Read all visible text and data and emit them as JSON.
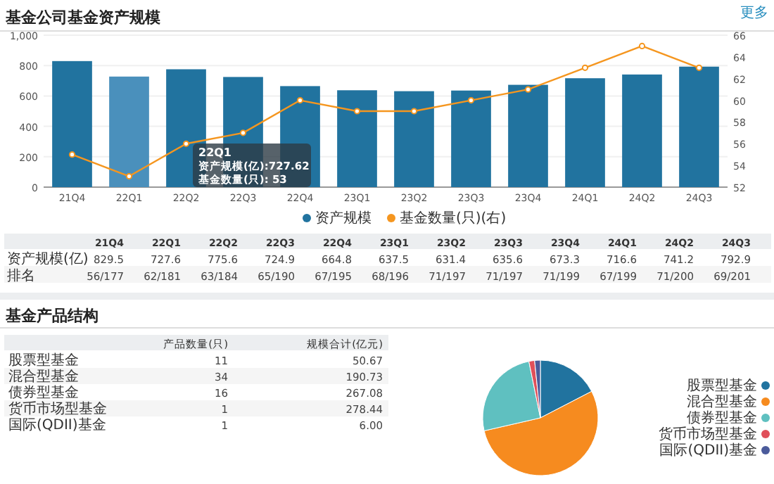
{
  "chart_data": [
    {
      "type": "bar",
      "title": "基金公司基金资产规模",
      "categories": [
        "21Q4",
        "22Q1",
        "22Q2",
        "22Q3",
        "22Q4",
        "23Q1",
        "23Q2",
        "23Q3",
        "23Q4",
        "24Q1",
        "24Q2",
        "24Q3"
      ],
      "series": [
        {
          "name": "资产规模",
          "color": "#21739f",
          "colors": [
            "#21739f",
            "#4a90bc",
            "#21739f",
            "#21739f",
            "#21739f",
            "#21739f",
            "#21739f",
            "#21739f",
            "#21739f",
            "#21739f",
            "#21739f",
            "#21739f"
          ],
          "values": [
            829.5,
            727.6,
            775.6,
            724.9,
            664.8,
            637.5,
            631.4,
            635.6,
            673.3,
            716.6,
            741.2,
            792.9
          ]
        },
        {
          "name": "基金数量(只)(右)",
          "type": "line",
          "axis": "y2",
          "color": "#f5961f",
          "marker": "circle",
          "values": [
            55,
            53,
            56,
            57,
            60,
            59,
            59,
            60,
            61,
            63,
            65,
            63
          ]
        }
      ],
      "ylim": [
        0,
        1000
      ],
      "yticks": [
        0,
        200,
        400,
        600,
        800,
        {
          "value": 1000,
          "label": "1,000"
        }
      ],
      "y2lim": [
        52,
        66
      ],
      "y2ticks": [
        52,
        54,
        56,
        58,
        60,
        62,
        64,
        66
      ],
      "grid": "y",
      "legend": "bottom",
      "annotations": [
        "更多",
        "22Q1\n资产规模(亿):727.62\n基金数量(只): 53"
      ]
    },
    {
      "type": "other",
      "categories": [
        "21Q4",
        "22Q1",
        "22Q2",
        "22Q3",
        "22Q4",
        "23Q1",
        "23Q2",
        "23Q3",
        "23Q4",
        "24Q1",
        "24Q2",
        "24Q3"
      ],
      "annotations": [
        "资产规模(亿)",
        "829.5",
        "727.6",
        "775.6",
        "724.9",
        "664.8",
        "637.5",
        "631.4",
        "635.6",
        "673.3",
        "716.6",
        "741.2",
        "792.9",
        "排名",
        "56/177",
        "62/181",
        "63/184",
        "65/190",
        "67/195",
        "68/196",
        "71/197",
        "71/197",
        "71/199",
        "67/199",
        "71/200",
        "69/201"
      ]
    },
    {
      "type": "other",
      "title": "基金产品结构",
      "categories": [
        "股票型基金",
        "混合型基金",
        "债券型基金",
        "货币市场型基金",
        "国际(QDII)基金"
      ],
      "annotations": [
        "产品数量(只)",
        "规模合计(亿元)",
        "11",
        "50.67",
        "34",
        "190.73",
        "16",
        "267.08",
        "1",
        "278.44",
        "1",
        "6.00"
      ]
    },
    {
      "type": "pie",
      "categories": [
        "股票型基金",
        "混合型基金",
        "债券型基金",
        "货币市场型基金",
        "国际(QDII)基金"
      ],
      "values": [
        17.4,
        54,
        25.4,
        1.6,
        1.6
      ],
      "colors": [
        "#21739f",
        "#f68b1f",
        "#5fc0c0",
        "#e0505a",
        "#4b5b9b"
      ],
      "legend": "right"
    }
  ]
}
